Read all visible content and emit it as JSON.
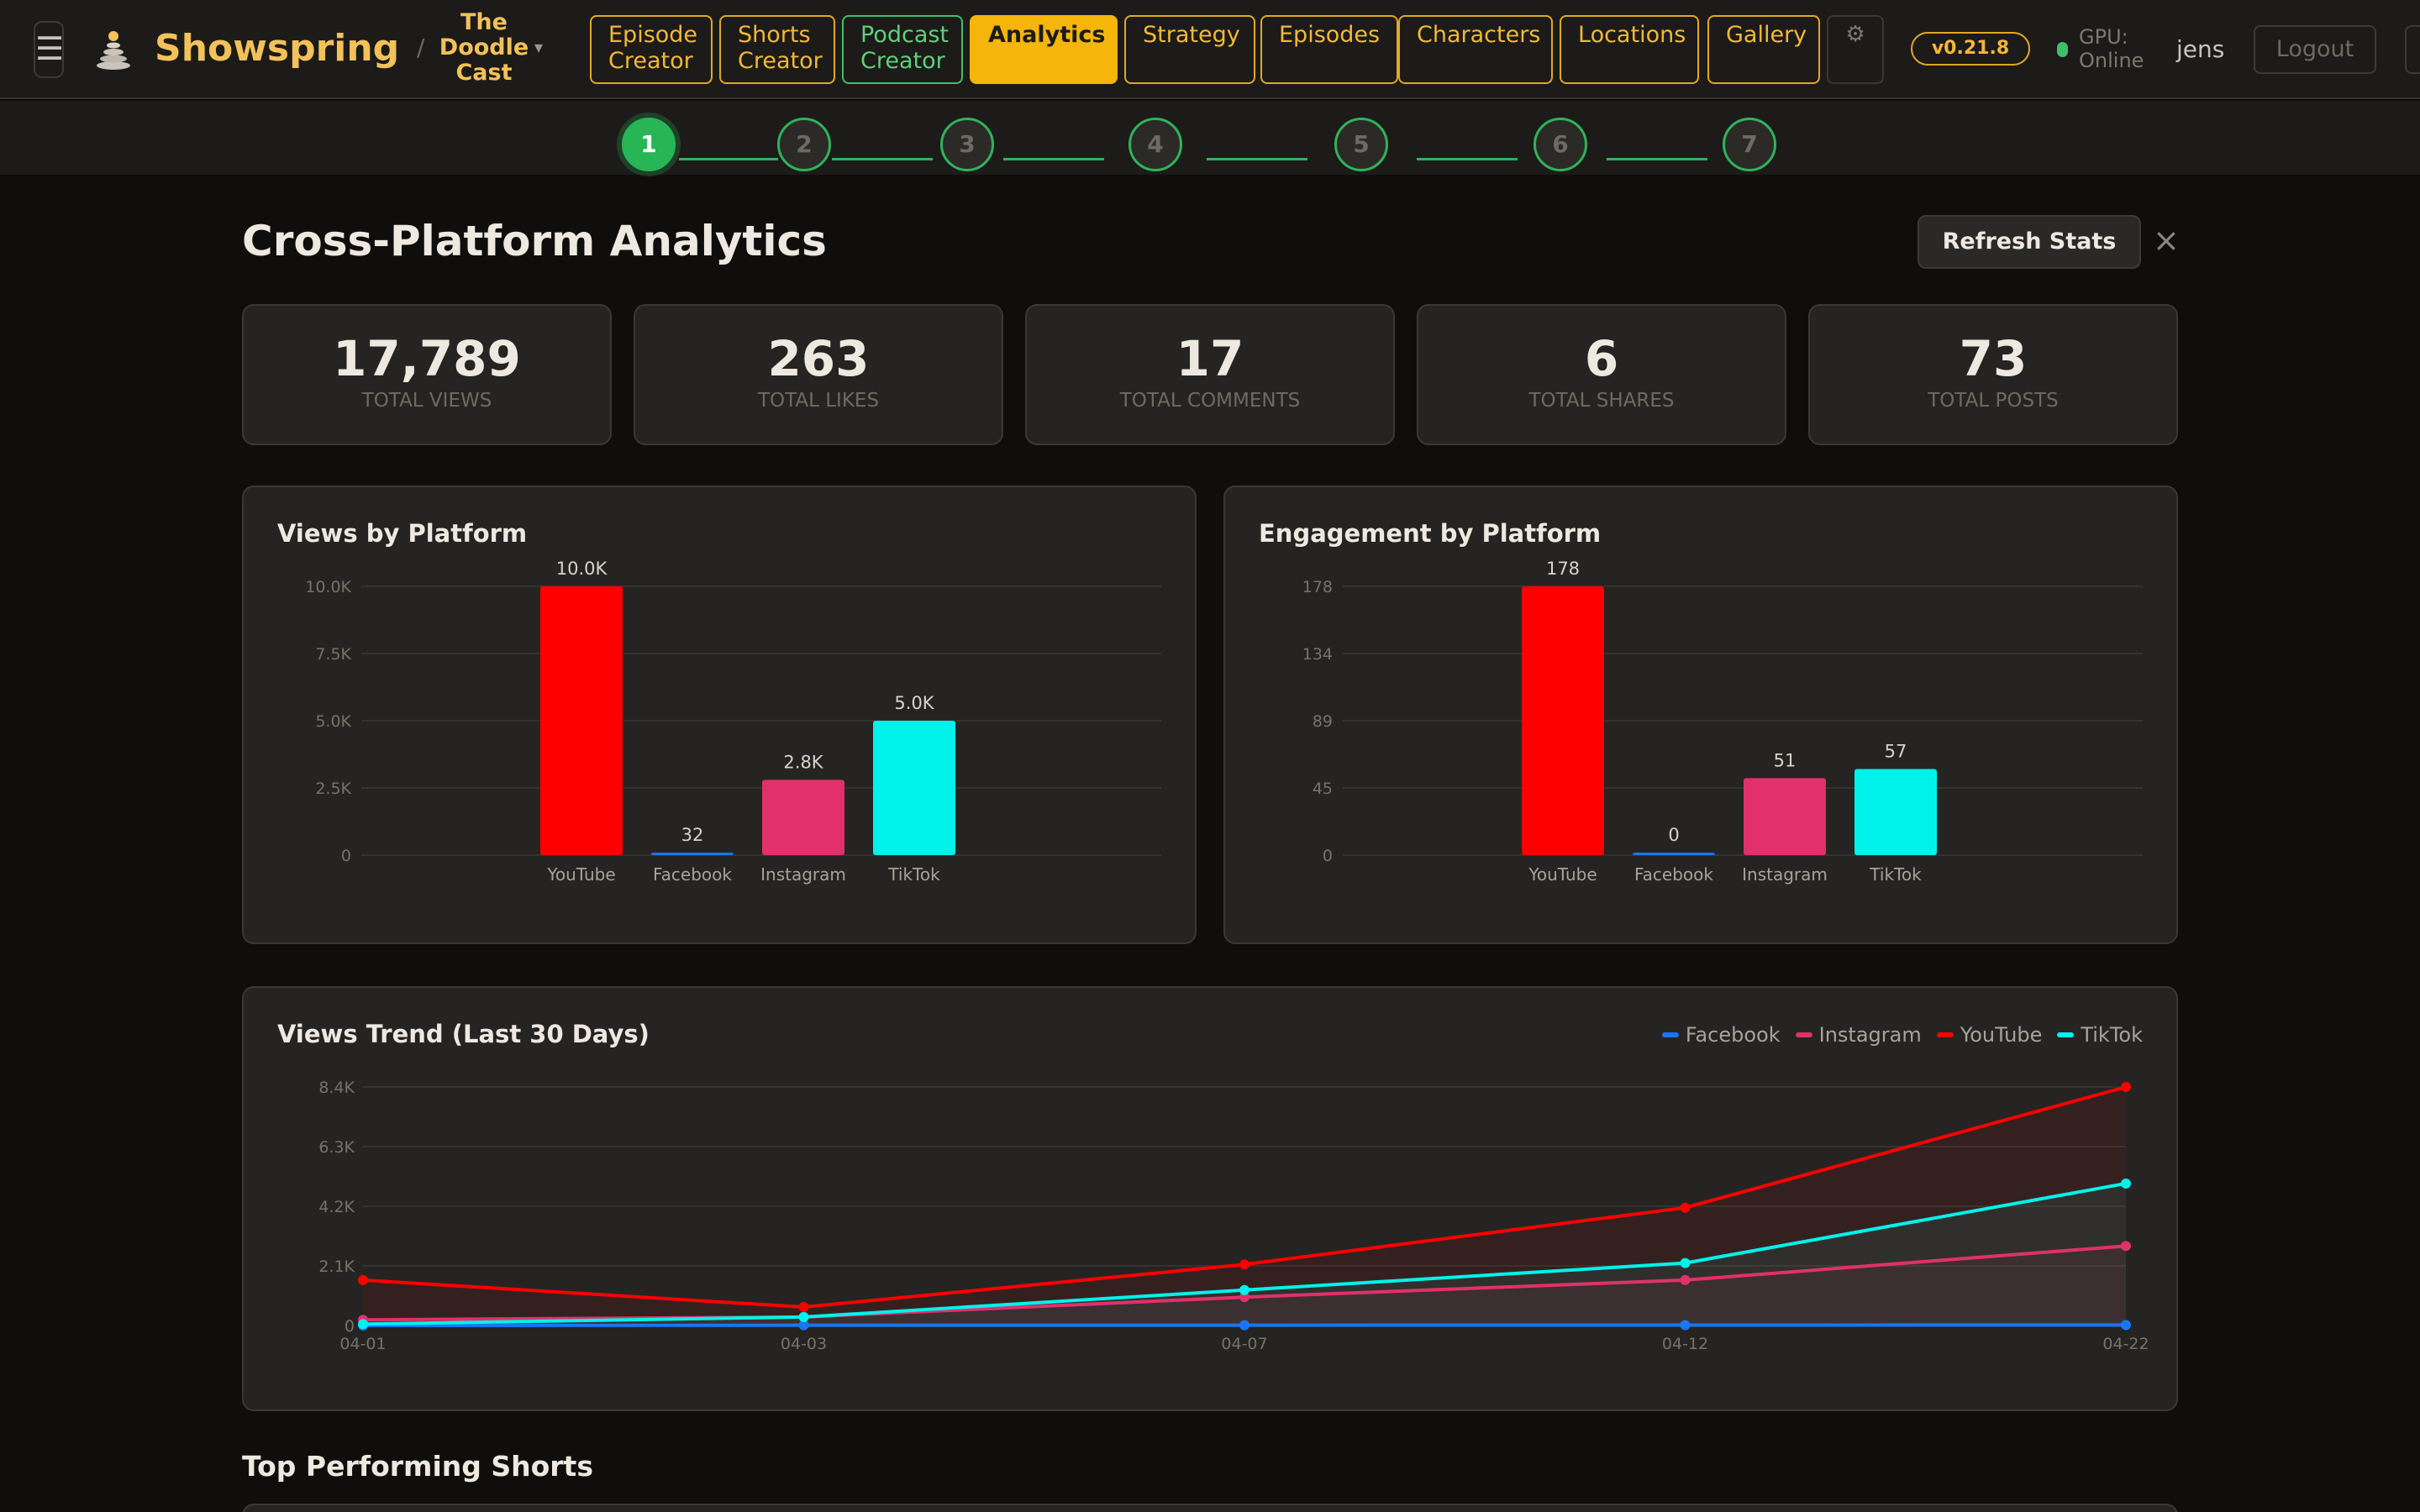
{
  "header": {
    "menu_icon": "hamburger-icon",
    "brand": "Showspring",
    "separator": "/",
    "project": "The Doodle Cast",
    "nav": [
      {
        "label": "Episode Creator",
        "active": false,
        "accent": "#e0a825"
      },
      {
        "label": "Shorts Creator",
        "active": false,
        "accent": "#e0a825"
      },
      {
        "label": "Podcast Creator",
        "active": false,
        "accent": "#3fbf6a"
      },
      {
        "label": "Analytics",
        "active": true,
        "accent": "#f5b50a"
      },
      {
        "label": "Strategy",
        "active": false,
        "accent": "#e0a825"
      },
      {
        "label": "Episodes",
        "active": false,
        "accent": "#e0a825"
      },
      {
        "label": "Characters",
        "active": false,
        "accent": "#e0a825"
      },
      {
        "label": "Locations",
        "active": false,
        "accent": "#e0a825"
      },
      {
        "label": "Gallery",
        "active": false,
        "accent": "#e0a825"
      }
    ],
    "settings_icon": "gear-icon",
    "version": "v0.21.8",
    "gpu_status": "GPU: Online",
    "user": "jens",
    "logout": "Logout"
  },
  "stepper": {
    "steps": [
      "1",
      "2",
      "3",
      "4",
      "5",
      "6",
      "7"
    ],
    "current": 1
  },
  "page": {
    "title": "Cross-Platform Analytics",
    "refresh": "Refresh Stats",
    "close": "×"
  },
  "stats": [
    {
      "value": "17,789",
      "label": "TOTAL VIEWS"
    },
    {
      "value": "263",
      "label": "TOTAL LIKES"
    },
    {
      "value": "17",
      "label": "TOTAL COMMENTS"
    },
    {
      "value": "6",
      "label": "TOTAL SHARES"
    },
    {
      "value": "73",
      "label": "TOTAL POSTS"
    }
  ],
  "colors": {
    "YouTube": "#ff0000",
    "Facebook": "#1877f2",
    "Instagram": "#e1306c",
    "TikTok": "#00f2ea"
  },
  "chart_data": [
    {
      "type": "bar",
      "title": "Views by Platform",
      "categories": [
        "YouTube",
        "Facebook",
        "Instagram",
        "TikTok"
      ],
      "values": [
        10000,
        32,
        2800,
        5000
      ],
      "value_labels": [
        "10.0K",
        "32",
        "2.8K",
        "5.0K"
      ],
      "yticks": [
        "0",
        "2.5K",
        "5.0K",
        "7.5K",
        "10.0K"
      ],
      "ylim": [
        0,
        10000
      ],
      "grid": true
    },
    {
      "type": "bar",
      "title": "Engagement by Platform",
      "categories": [
        "YouTube",
        "Facebook",
        "Instagram",
        "TikTok"
      ],
      "values": [
        178,
        0,
        51,
        57
      ],
      "value_labels": [
        "178",
        "0",
        "51",
        "57"
      ],
      "yticks": [
        "0",
        "45",
        "89",
        "134",
        "178"
      ],
      "ylim": [
        0,
        178
      ],
      "grid": true
    },
    {
      "type": "line",
      "title": "Views Trend (Last 30 Days)",
      "x": [
        "04-01",
        "04-03",
        "04-07",
        "04-12",
        "04-22"
      ],
      "yticks": [
        "0",
        "2.1K",
        "4.2K",
        "6.3K",
        "8.4K"
      ],
      "ylim": [
        0,
        8400
      ],
      "legend_position": "top-right",
      "grid": true,
      "series": [
        {
          "name": "Facebook",
          "values": [
            0,
            10,
            12,
            15,
            20
          ]
        },
        {
          "name": "Instagram",
          "values": [
            200,
            300,
            1000,
            1600,
            2800
          ]
        },
        {
          "name": "YouTube",
          "values": [
            1600,
            650,
            2150,
            4150,
            8400
          ]
        },
        {
          "name": "TikTok",
          "values": [
            50,
            300,
            1250,
            2200,
            5000
          ]
        }
      ]
    }
  ],
  "sections": {
    "top_shorts": "Top Performing Shorts"
  }
}
